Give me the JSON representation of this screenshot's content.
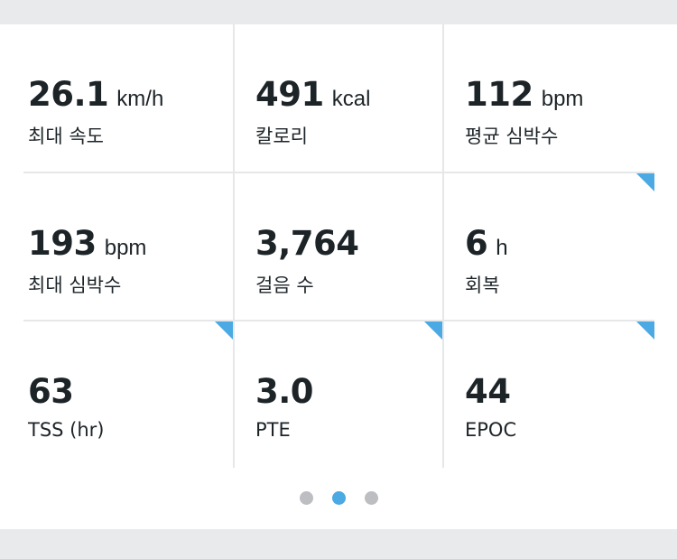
{
  "metrics": [
    {
      "value": "26.1",
      "unit": "km/h",
      "label": "최대 속도",
      "flagged": false
    },
    {
      "value": "491",
      "unit": "kcal",
      "label": "칼로리",
      "flagged": false
    },
    {
      "value": "112",
      "unit": "bpm",
      "label": "평균 심박수",
      "flagged": false
    },
    {
      "value": "193",
      "unit": "bpm",
      "label": "최대 심박수",
      "flagged": false
    },
    {
      "value": "3,764",
      "unit": "",
      "label": "걸음 수",
      "flagged": false
    },
    {
      "value": "6",
      "unit": "h",
      "label": "회복",
      "flagged": true
    },
    {
      "value": "63",
      "unit": "",
      "label": "TSS (hr)",
      "flagged": true
    },
    {
      "value": "3.0",
      "unit": "",
      "label": "PTE",
      "flagged": true
    },
    {
      "value": "44",
      "unit": "",
      "label": "EPOC",
      "flagged": true
    }
  ],
  "pager": {
    "pages": 3,
    "current": 2
  },
  "colors": {
    "accent": "#4ba9e3",
    "text": "#1d2428",
    "divider": "#e6e7e9",
    "background": "#e9eaec",
    "dot_inactive": "#bcbec1"
  }
}
